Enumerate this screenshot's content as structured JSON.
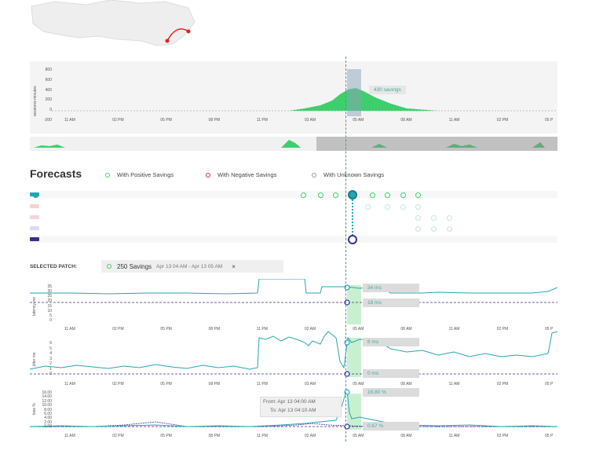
{
  "map": {
    "region": "map-thumbnail"
  },
  "savings_chart": {
    "y_ticks": [
      "800",
      "600",
      "400",
      "200",
      "0",
      "-200"
    ],
    "y_label": "sessions-minutes",
    "x_ticks": [
      "11 AM",
      "02 PM",
      "05 PM",
      "08 PM",
      "11 PM",
      "02 AM",
      "05 AM",
      "08 AM",
      "11 AM",
      "02 PM",
      "05 P"
    ],
    "callout": "430 savings"
  },
  "forecasts": {
    "title": "Forecasts",
    "legend": [
      {
        "label": "With Positive Savings",
        "color": "#3ecf6c"
      },
      {
        "label": "With Negative Savings",
        "color": "#c0303a"
      },
      {
        "label": "With Unknown Savings",
        "color": "#999999"
      }
    ],
    "rows": [
      {
        "color": "#27a6b3"
      },
      {
        "color": "#f6d3d0"
      },
      {
        "color": "#f3d3e3"
      },
      {
        "color": "#dcd9f4"
      },
      {
        "color": "#3b2c99"
      }
    ]
  },
  "selected_patch": {
    "label": "SELECTED PATCH:",
    "savings": "250 Savings",
    "range": "Apr 13 04 AM - Apr 13 05 AM",
    "close": "×"
  },
  "latency_chart": {
    "y_label": "latency ms",
    "y_ticks": [
      "35",
      "30",
      "25",
      "20",
      "15",
      "10",
      "5",
      "0"
    ],
    "x_ticks": [
      "11 AM",
      "02 PM",
      "05 PM",
      "08 PM",
      "11 PM",
      "02 AM",
      "05 AM",
      "08 AM",
      "11 AM",
      "02 PM",
      "05 P"
    ],
    "callout_top": "34 ms",
    "callout_bottom": "18 ms"
  },
  "jitter_chart": {
    "y_label": "jitter ms",
    "y_ticks": [
      "6",
      "5",
      "4",
      "3",
      "2",
      "1",
      "0"
    ],
    "x_ticks": [
      "11 AM",
      "02 PM",
      "05 PM",
      "08 PM",
      "11 PM",
      "02 AM",
      "05 AM",
      "08 AM",
      "11 AM",
      "02 PM",
      "05 P"
    ],
    "callout_top": "6 ms",
    "callout_bottom": "0 ms"
  },
  "loss_chart": {
    "y_label": "loss %",
    "y_ticks": [
      "16.00",
      "14.00",
      "12.00",
      "10.00",
      "8.00",
      "6.00",
      "4.00",
      "2.00",
      "0.00"
    ],
    "x_ticks": [
      "11 AM",
      "02 PM",
      "05 PM",
      "08 PM",
      "11 PM",
      "02 AM",
      "05 AM",
      "08 AM",
      "11 AM",
      "02 PM",
      "05 P"
    ],
    "callout_top": "16.80 %",
    "callout_bottom": "0.67 %",
    "tooltip_from": "From: Apr 13 04:00 AM",
    "tooltip_to": "To: Apr 13 04:10 AM"
  }
}
